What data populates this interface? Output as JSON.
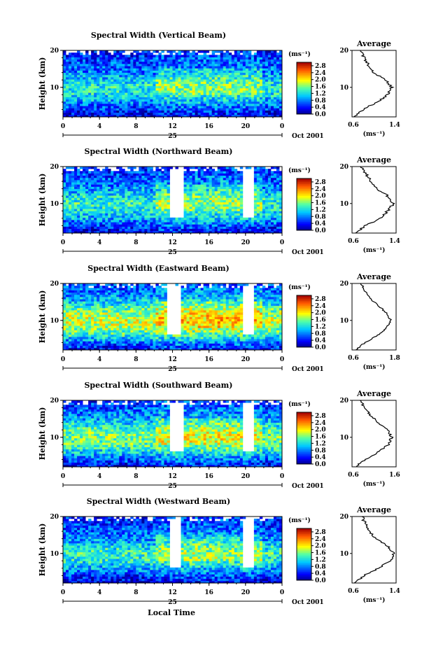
{
  "figure": {
    "xlabel": "Local Time",
    "ylabel": "Height (km)",
    "date_label": "Oct 2001",
    "day_label": "25",
    "colorbar_unit": "(ms⁻¹)",
    "colorbar_ticks": [
      "0.0",
      "0.4",
      "0.8",
      "1.2",
      "1.6",
      "2.0",
      "2.4",
      "2.8"
    ],
    "x_ticks": [
      "0",
      "4",
      "8",
      "12",
      "16",
      "20",
      "0"
    ],
    "y_ticks": [
      "10",
      "20"
    ],
    "avg_title": "Average",
    "avg_unit": "(ms⁻¹)"
  },
  "chart_data": [
    {
      "type": "heatmap",
      "title": "Spectral Width (Vertical Beam)",
      "xlabel": "Local Time",
      "ylabel": "Height (km)",
      "x_range_hours": [
        0,
        24
      ],
      "y_range_km": [
        2,
        20
      ],
      "color_range_ms": [
        0.0,
        3.0
      ],
      "gaps_hours": [],
      "profile": {
        "title": "Average",
        "xlabel": "(ms⁻¹)",
        "x_ticks": [
          "0.6",
          "1.4"
        ],
        "xlim": [
          0.6,
          1.4
        ],
        "height_km": [
          2,
          4,
          6,
          8,
          10,
          12,
          14,
          16,
          18,
          20
        ],
        "width_ms": [
          0.62,
          0.8,
          1.05,
          1.25,
          1.32,
          1.2,
          1.0,
          0.9,
          0.82,
          0.75
        ]
      }
    },
    {
      "type": "heatmap",
      "title": "Spectral Width (Northward Beam)",
      "xlabel": "Local Time",
      "ylabel": "Height (km)",
      "x_range_hours": [
        0,
        24
      ],
      "y_range_km": [
        2,
        20
      ],
      "color_range_ms": [
        0.0,
        3.0
      ],
      "gaps_hours": [
        [
          11.8,
          13.2
        ],
        [
          19.8,
          20.8
        ]
      ],
      "profile": {
        "title": "Average",
        "xlabel": "(ms⁻¹)",
        "x_ticks": [
          "0.6",
          "1.4"
        ],
        "xlim": [
          0.6,
          1.4
        ],
        "height_km": [
          2,
          4,
          6,
          8,
          10,
          12,
          14,
          16,
          18,
          20
        ],
        "width_ms": [
          0.65,
          0.85,
          1.1,
          1.25,
          1.35,
          1.25,
          1.05,
          0.95,
          0.85,
          0.78
        ]
      }
    },
    {
      "type": "heatmap",
      "title": "Spectral Width (Eastward Beam)",
      "xlabel": "Local Time",
      "ylabel": "Height (km)",
      "x_range_hours": [
        0,
        24
      ],
      "y_range_km": [
        2,
        20
      ],
      "color_range_ms": [
        0.0,
        3.0
      ],
      "gaps_hours": [
        [
          11.5,
          13.0
        ],
        [
          19.8,
          21.0
        ]
      ],
      "profile": {
        "title": "Average",
        "xlabel": "(ms⁻¹)",
        "x_ticks": [
          "0.6",
          "1.8"
        ],
        "xlim": [
          0.6,
          1.8
        ],
        "height_km": [
          2,
          4,
          6,
          8,
          10,
          12,
          14,
          16,
          18,
          20
        ],
        "width_ms": [
          0.7,
          0.95,
          1.3,
          1.55,
          1.65,
          1.55,
          1.3,
          1.1,
          0.95,
          0.85
        ]
      }
    },
    {
      "type": "heatmap",
      "title": "Spectral Width (Southward Beam)",
      "xlabel": "Local Time",
      "ylabel": "Height (km)",
      "x_range_hours": [
        0,
        24
      ],
      "y_range_km": [
        2,
        20
      ],
      "color_range_ms": [
        0.0,
        3.0
      ],
      "gaps_hours": [
        [
          11.8,
          13.2
        ],
        [
          19.6,
          20.8
        ]
      ],
      "profile": {
        "title": "Average",
        "xlabel": "(ms⁻¹)",
        "x_ticks": [
          "0.6",
          "1.6"
        ],
        "xlim": [
          0.6,
          1.6
        ],
        "height_km": [
          2,
          4,
          6,
          8,
          10,
          12,
          14,
          16,
          18,
          20
        ],
        "width_ms": [
          0.68,
          0.9,
          1.2,
          1.42,
          1.5,
          1.4,
          1.2,
          1.02,
          0.88,
          0.8
        ]
      }
    },
    {
      "type": "heatmap",
      "title": "Spectral Width (Westward Beam)",
      "xlabel": "Local Time",
      "ylabel": "Height (km)",
      "x_range_hours": [
        0,
        24
      ],
      "y_range_km": [
        2,
        20
      ],
      "color_range_ms": [
        0.0,
        3.0
      ],
      "gaps_hours": [
        [
          11.8,
          13.0
        ],
        [
          19.8,
          20.8
        ]
      ],
      "profile": {
        "title": "Average",
        "xlabel": "(ms⁻¹)",
        "x_ticks": [
          "0.6",
          "1.4"
        ],
        "xlim": [
          0.6,
          1.4
        ],
        "height_km": [
          2,
          4,
          6,
          8,
          10,
          12,
          14,
          16,
          18,
          20
        ],
        "width_ms": [
          0.63,
          0.82,
          1.08,
          1.3,
          1.36,
          1.24,
          1.02,
          0.92,
          0.84,
          0.78
        ]
      }
    }
  ]
}
